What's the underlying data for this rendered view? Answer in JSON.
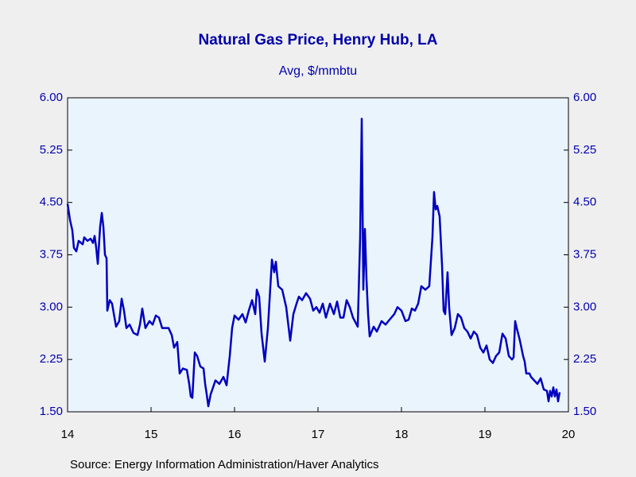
{
  "chart_data": {
    "type": "line",
    "title": "Natural Gas Price, Henry Hub, LA",
    "subtitle": "Avg, $/mmbtu",
    "source": "Source:  Energy Information Administration/Haver Analytics",
    "color": "#0000c0",
    "x": [
      14.0,
      14.029,
      14.057,
      14.076,
      14.105,
      14.133,
      14.181,
      14.2,
      14.238,
      14.276,
      14.305,
      14.324,
      14.343,
      14.362,
      14.39,
      14.41,
      14.429,
      14.448,
      14.467,
      14.476,
      14.505,
      14.533,
      14.581,
      14.619,
      14.648,
      14.676,
      14.705,
      14.743,
      14.79,
      14.838,
      14.867,
      14.895,
      14.933,
      14.981,
      15.019,
      15.057,
      15.095,
      15.133,
      15.21,
      15.248,
      15.276,
      15.314,
      15.343,
      15.381,
      15.429,
      15.457,
      15.476,
      15.495,
      15.524,
      15.552,
      15.59,
      15.629,
      15.648,
      15.667,
      15.686,
      15.714,
      15.743,
      15.771,
      15.819,
      15.867,
      15.905,
      15.943,
      15.971,
      16.0,
      16.048,
      16.095,
      16.133,
      16.171,
      16.21,
      16.248,
      16.267,
      16.295,
      16.324,
      16.362,
      16.4,
      16.448,
      16.476,
      16.495,
      16.524,
      16.571,
      16.619,
      16.667,
      16.705,
      16.743,
      16.771,
      16.81,
      16.857,
      16.905,
      16.943,
      16.981,
      17.019,
      17.057,
      17.095,
      17.143,
      17.19,
      17.229,
      17.267,
      17.305,
      17.343,
      17.381,
      17.419,
      17.476,
      17.505,
      17.524,
      17.543,
      17.562,
      17.581,
      17.6,
      17.619,
      17.667,
      17.705,
      17.762,
      17.81,
      17.857,
      17.914,
      17.952,
      18.0,
      18.048,
      18.086,
      18.124,
      18.162,
      18.2,
      18.238,
      18.286,
      18.333,
      18.371,
      18.39,
      18.41,
      18.429,
      18.457,
      18.486,
      18.505,
      18.524,
      18.552,
      18.571,
      18.6,
      18.638,
      18.676,
      18.714,
      18.752,
      18.79,
      18.829,
      18.867,
      18.905,
      18.943,
      18.981,
      19.019,
      19.057,
      19.095,
      19.133,
      19.171,
      19.21,
      19.248,
      19.286,
      19.324,
      19.343,
      19.362,
      19.381,
      19.419,
      19.457,
      19.476,
      19.495,
      19.533,
      19.552,
      19.59,
      19.629,
      19.667,
      19.705,
      19.743,
      19.762,
      19.781,
      19.8,
      19.819,
      19.838,
      19.857,
      19.876,
      19.895
    ],
    "values": [
      4.48,
      4.25,
      4.1,
      3.85,
      3.8,
      3.95,
      3.9,
      4.0,
      3.95,
      3.98,
      3.92,
      4.02,
      3.85,
      3.62,
      4.15,
      4.35,
      4.15,
      3.75,
      3.7,
      2.95,
      3.1,
      3.05,
      2.72,
      2.8,
      3.12,
      2.95,
      2.7,
      2.75,
      2.63,
      2.6,
      2.75,
      2.98,
      2.7,
      2.8,
      2.75,
      2.88,
      2.85,
      2.7,
      2.7,
      2.6,
      2.42,
      2.5,
      2.05,
      2.12,
      2.1,
      1.9,
      1.72,
      1.7,
      2.35,
      2.3,
      2.15,
      2.12,
      1.9,
      1.75,
      1.58,
      1.75,
      1.85,
      1.95,
      1.9,
      2.0,
      1.88,
      2.3,
      2.7,
      2.88,
      2.82,
      2.9,
      2.78,
      2.95,
      3.1,
      2.9,
      3.25,
      3.15,
      2.62,
      2.22,
      2.7,
      3.68,
      3.5,
      3.65,
      3.3,
      3.25,
      3.0,
      2.52,
      2.9,
      3.05,
      3.15,
      3.1,
      3.2,
      3.12,
      2.95,
      3.0,
      2.92,
      3.05,
      2.85,
      3.05,
      2.9,
      3.08,
      2.85,
      2.85,
      3.1,
      3.0,
      2.85,
      2.72,
      4.0,
      5.7,
      3.25,
      4.12,
      3.4,
      2.9,
      2.58,
      2.72,
      2.65,
      2.8,
      2.75,
      2.82,
      2.9,
      3.0,
      2.95,
      2.8,
      2.82,
      2.98,
      2.95,
      3.05,
      3.3,
      3.25,
      3.3,
      4.0,
      4.65,
      4.4,
      4.45,
      4.3,
      3.6,
      2.95,
      2.9,
      3.5,
      3.0,
      2.6,
      2.7,
      2.9,
      2.85,
      2.7,
      2.65,
      2.55,
      2.65,
      2.6,
      2.42,
      2.35,
      2.45,
      2.25,
      2.2,
      2.3,
      2.35,
      2.62,
      2.55,
      2.3,
      2.25,
      2.28,
      2.8,
      2.7,
      2.52,
      2.3,
      2.22,
      2.05,
      2.05,
      2.0,
      1.95,
      1.9,
      1.98,
      1.82,
      1.8,
      1.65,
      1.8,
      1.72,
      1.85,
      1.72,
      1.82,
      1.65,
      1.78
    ],
    "xlim": [
      14,
      20
    ],
    "xticks": [
      14,
      15,
      16,
      17,
      18,
      19,
      20
    ],
    "ylim": [
      1.5,
      6
    ],
    "yticks": [
      {
        "value": 1.5,
        "label": "1.50"
      },
      {
        "value": 2.25,
        "label": "2.25"
      },
      {
        "value": 3,
        "label": "3.00"
      },
      {
        "value": 3.75,
        "label": "3.75"
      },
      {
        "value": 4.5,
        "label": "4.50"
      },
      {
        "value": 5.25,
        "label": "5.25"
      },
      {
        "value": 6,
        "label": "6.00"
      }
    ],
    "y2lim": [
      1.5,
      6
    ],
    "y2ticks": [
      {
        "value": 1.5,
        "label": "1.50"
      },
      {
        "value": 2.25,
        "label": "2.25"
      },
      {
        "value": 3,
        "label": "3.00"
      },
      {
        "value": 3.75,
        "label": "3.75"
      },
      {
        "value": 4.5,
        "label": "4.50"
      },
      {
        "value": 5.25,
        "label": "5.25"
      },
      {
        "value": 6,
        "label": "6.00"
      }
    ],
    "grid": false
  }
}
